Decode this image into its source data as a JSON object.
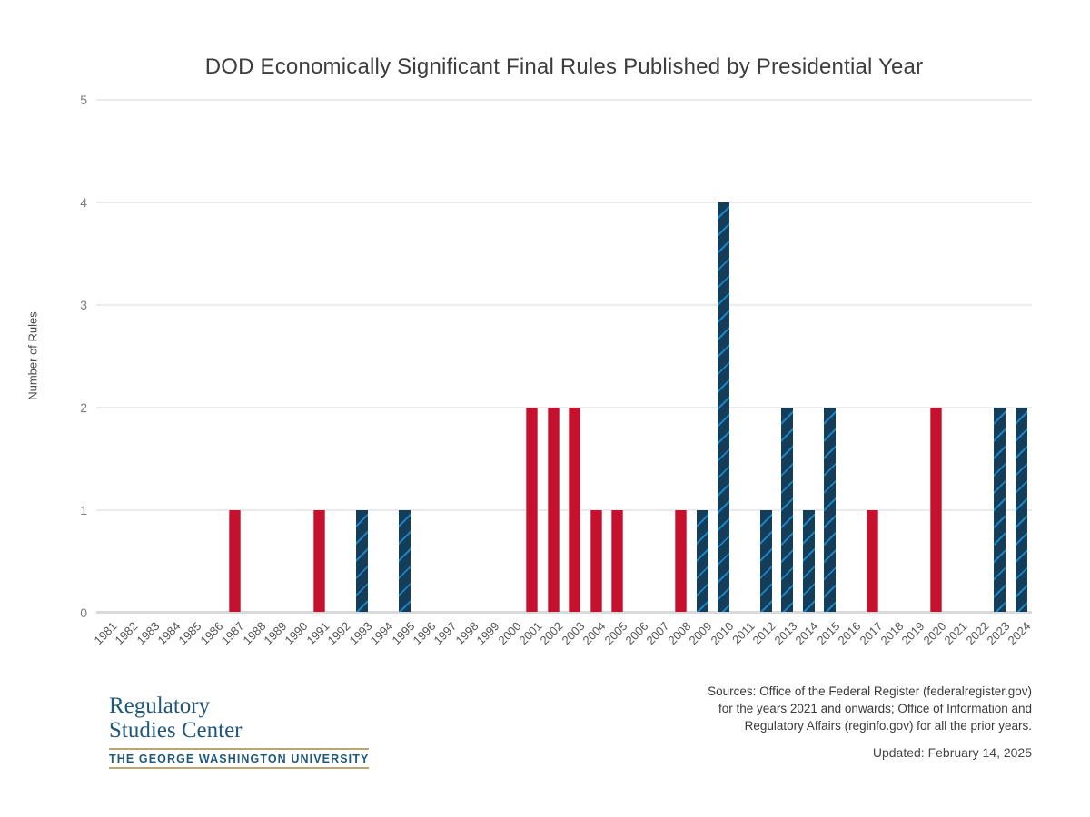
{
  "chart_data": {
    "type": "bar",
    "title": "DOD Economically Significant Final Rules Published by Presidential Year",
    "xlabel": "",
    "ylabel": "Number of Rules",
    "ylim": [
      0,
      5
    ],
    "yticks": [
      0,
      1,
      2,
      3,
      4,
      5
    ],
    "grid": true,
    "legend_position": "none",
    "categories": [
      "1981",
      "1982",
      "1983",
      "1984",
      "1985",
      "1986",
      "1987",
      "1988",
      "1989",
      "1990",
      "1991",
      "1992",
      "1993",
      "1994",
      "1995",
      "1996",
      "1997",
      "1998",
      "1999",
      "2000",
      "2001",
      "2002",
      "2003",
      "2004",
      "2005",
      "2006",
      "2007",
      "2008",
      "2009",
      "2010",
      "2011",
      "2012",
      "2013",
      "2014",
      "2015",
      "2016",
      "2017",
      "2018",
      "2019",
      "2020",
      "2021",
      "2022",
      "2023",
      "2024"
    ],
    "series": [
      {
        "name": "DOD economically significant final rules",
        "values": [
          0,
          0,
          0,
          0,
          0,
          0,
          1,
          0,
          0,
          0,
          1,
          0,
          1,
          0,
          1,
          0,
          0,
          0,
          0,
          0,
          2,
          2,
          2,
          1,
          1,
          0,
          0,
          1,
          1,
          4,
          0,
          1,
          2,
          1,
          2,
          0,
          1,
          0,
          0,
          2,
          0,
          0,
          2,
          2
        ],
        "party_by_year": [
          "R",
          "R",
          "R",
          "R",
          "R",
          "R",
          "R",
          "R",
          "R",
          "R",
          "R",
          "R",
          "D",
          "D",
          "D",
          "D",
          "D",
          "D",
          "D",
          "D",
          "R",
          "R",
          "R",
          "R",
          "R",
          "R",
          "R",
          "R",
          "D",
          "D",
          "D",
          "D",
          "D",
          "D",
          "D",
          "D",
          "R",
          "R",
          "R",
          "R",
          "D",
          "D",
          "D",
          "D"
        ]
      }
    ],
    "colors": {
      "republican_bar": "#C5102E",
      "democrat_bar": "#143D59",
      "democrat_bar_stripe": "#1E81C2"
    }
  },
  "footer": {
    "logo": {
      "org_line1": "Regulatory",
      "org_line2": "Studies Center",
      "university": "THE GEORGE WASHINGTON UNIVERSITY",
      "brand_blue": "#1F587A",
      "brand_gold": "#BCA571"
    },
    "sources_text": "Sources: Office of the Federal Register (federalregister.gov)\nfor the years 2021 and onwards; Office of Information and\nRegulatory Affairs (reginfo.gov) for all the prior years.",
    "updated": "Updated: February 14, 2025"
  }
}
